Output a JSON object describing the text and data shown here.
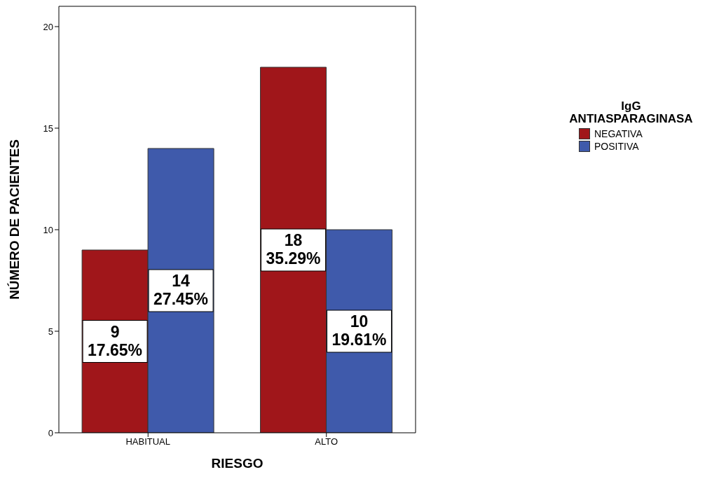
{
  "chart_data": {
    "type": "bar",
    "xlabel": "RIESGO",
    "ylabel": "NÚMERO DE PACIENTES",
    "legend_title": "IgG ANTIASPARAGINASA",
    "categories": [
      "HABITUAL",
      "ALTO"
    ],
    "series": [
      {
        "name": "NEGATIVA",
        "color": "#a0161a",
        "values": [
          9,
          18
        ],
        "value_labels": [
          "9\n17.65%",
          "18\n35.29%"
        ]
      },
      {
        "name": "POSITIVA",
        "color": "#3f5aab",
        "values": [
          14,
          10
        ],
        "value_labels": [
          "14\n27.45%",
          "10\n19.61%"
        ]
      }
    ],
    "ylim": [
      0,
      21
    ],
    "yticks": [
      0,
      5,
      10,
      15,
      20
    ],
    "grid": false,
    "legend": "right"
  }
}
